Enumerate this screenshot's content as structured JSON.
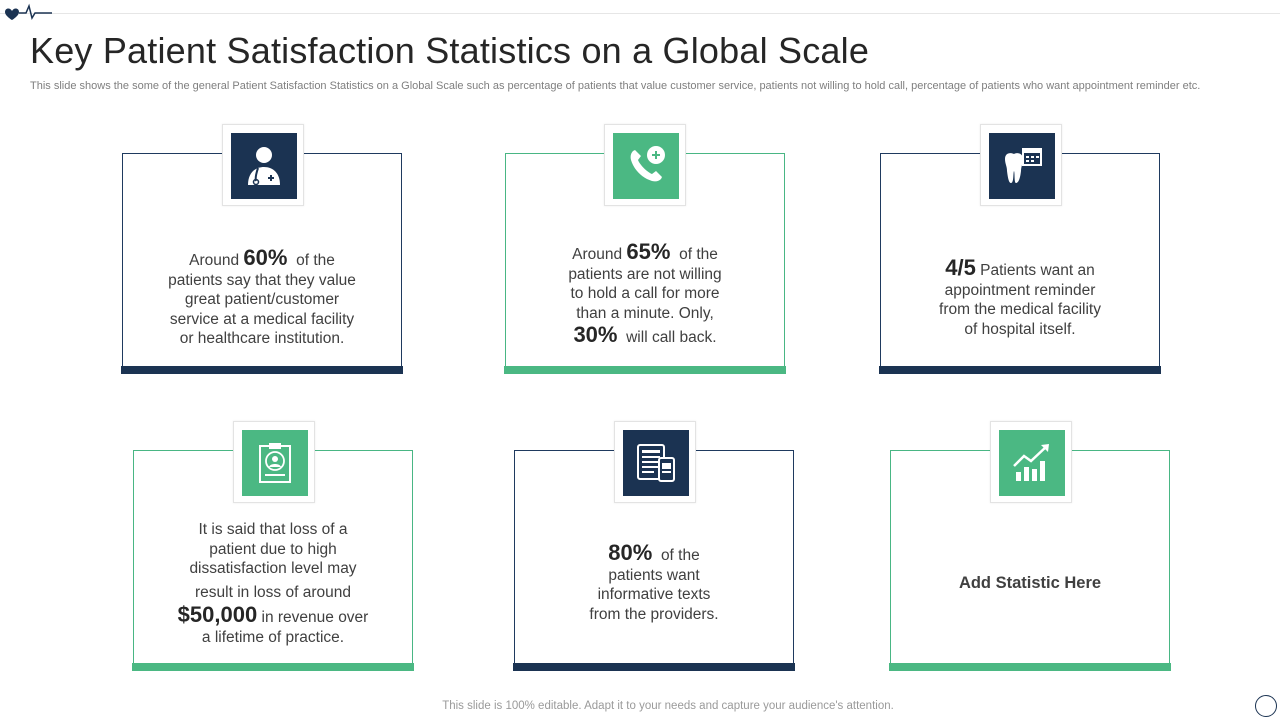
{
  "title": "Key Patient Satisfaction Statistics on a Global Scale",
  "subtitle": "This slide shows the some of the general Patient Satisfaction Statistics on a Global Scale such as percentage of patients that value customer service, patients not willing to hold call, percentage of patients who want appointment reminder etc.",
  "cards": [
    {
      "icon": "doctor-icon",
      "pre": "Around",
      "big": "60%",
      "post": "of the",
      "lines": [
        "patients say that they value",
        "great patient/customer",
        "service at a medical facility",
        "or healthcare institution."
      ]
    },
    {
      "icon": "phone-plus-icon",
      "pre": "Around",
      "big": "65%",
      "post": "of the",
      "lines": [
        "patients are not willing",
        "to hold a call for more",
        "than a minute.  Only,"
      ],
      "big2": "30%",
      "post2": "will call back."
    },
    {
      "icon": "tooth-calendar-icon",
      "big": "4/5",
      "post": "Patients want an",
      "lines": [
        "appointment reminder",
        "from the medical facility",
        "of hospital itself."
      ]
    },
    {
      "icon": "patient-record-icon",
      "lines": [
        "It is said that loss of a",
        "patient due to high",
        "dissatisfaction level may",
        "result in loss of around"
      ],
      "big": "$50,000",
      "post": "in revenue  over",
      "last": "a lifetime of practice."
    },
    {
      "icon": "tablet-phone-icon",
      "big": "80%",
      "post": "of the",
      "lines": [
        "patients want",
        "informative texts",
        "from the providers."
      ]
    },
    {
      "icon": "growth-chart-icon",
      "label": "Add Statistic Here"
    }
  ],
  "footer": "This slide is 100% editable. Adapt it to your needs and capture your audience's attention.",
  "colors": {
    "navy": "#1b3352",
    "green": "#4bb883"
  }
}
